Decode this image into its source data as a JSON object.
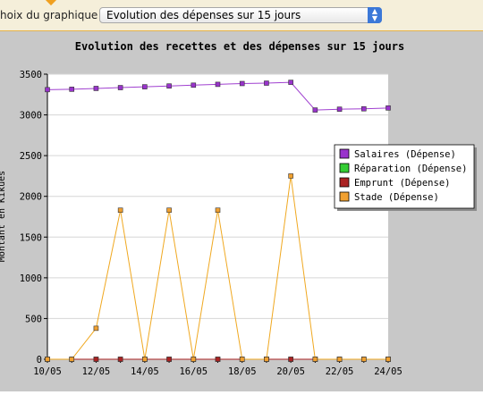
{
  "header": {
    "select_label": "hoix du graphique :",
    "select_value": "Evolution des dépenses sur 15 jours"
  },
  "chart_data": {
    "type": "line",
    "title": "Evolution des recettes et des dépenses sur 15 jours",
    "ylabel": "Montant en Kikues",
    "xlabel": "",
    "ylim": [
      0,
      3500
    ],
    "yticks": [
      0,
      500,
      1000,
      1500,
      2000,
      2500,
      3000,
      3500
    ],
    "x": [
      "10/05",
      "11/05",
      "12/05",
      "13/05",
      "14/05",
      "15/05",
      "16/05",
      "17/05",
      "18/05",
      "19/05",
      "20/05",
      "21/05",
      "22/05",
      "23/05",
      "24/05"
    ],
    "xtick_labels": [
      "10/05",
      "12/05",
      "14/05",
      "16/05",
      "18/05",
      "20/05",
      "22/05",
      "24/05"
    ],
    "grid": true,
    "legend_position": "top-right",
    "series": [
      {
        "name": "Salaires (Dépense)",
        "color": "#a040d0",
        "marker_color": "#9933cc",
        "values": [
          3310,
          3315,
          3325,
          3335,
          3345,
          3355,
          3365,
          3375,
          3385,
          3390,
          3400,
          3060,
          3070,
          3075,
          3085
        ]
      },
      {
        "name": "Réparation (Dépense)",
        "color": "#22cc22",
        "marker_color": "#33cc33",
        "values": [
          0,
          0,
          0,
          0,
          0,
          0,
          0,
          0,
          0,
          0,
          0,
          0,
          0,
          0,
          0
        ]
      },
      {
        "name": "Emprunt (Dépense)",
        "color": "#aa2222",
        "marker_color": "#aa2222",
        "values": [
          0,
          0,
          0,
          0,
          0,
          0,
          0,
          0,
          0,
          0,
          0,
          0,
          0,
          0,
          0
        ]
      },
      {
        "name": "Stade (Dépense)",
        "color": "#f0a820",
        "marker_color": "#f0a030",
        "values": [
          0,
          0,
          380,
          1830,
          0,
          1830,
          0,
          1830,
          0,
          0,
          2250,
          0,
          0,
          0,
          0
        ]
      }
    ]
  }
}
